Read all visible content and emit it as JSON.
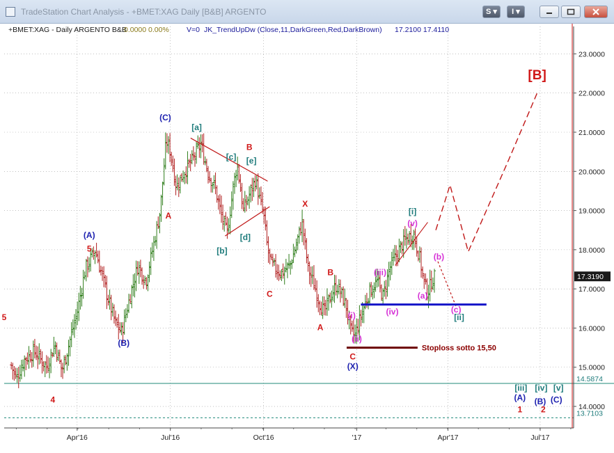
{
  "window": {
    "title": "TradeStation Chart Analysis - +BMET:XAG Daily [B&B] ARGENTO",
    "btn_s": "S",
    "btn_i": "I"
  },
  "header": {
    "symbol": "+BMET:XAG - Daily  ARGENTO  B&B",
    "change": "0.0000  0.00%",
    "volume": "V=0",
    "indicator": "JK_TrendUpDw (Close,11,DarkGreen,Red,DarkBrown)",
    "values": "17.2100  17.4110"
  },
  "chart_data": {
    "type": "bar",
    "title": "",
    "y_ticks": [
      "23.0000",
      "22.0000",
      "21.0000",
      "20.0000",
      "19.0000",
      "18.0000",
      "17.0000",
      "16.0000",
      "15.0000",
      "14.0000"
    ],
    "ylim": [
      13.45,
      23.7
    ],
    "x_tick_labels": [
      "Apr'16",
      "Jul'16",
      "Oct'16",
      "'17",
      "Apr'17",
      "Jul'17"
    ],
    "x_tick_days": [
      90,
      182,
      274,
      366,
      456,
      547
    ],
    "xlim": [
      18,
      580
    ],
    "last_price": "17.3190",
    "last_price_value": 17.319,
    "level_teal": {
      "label": "14.5874",
      "value": 14.5874
    },
    "level_dashed": {
      "label": "13.7103",
      "value": 13.7103
    },
    "ohlc_anchors": [
      [
        25,
        15.05
      ],
      [
        30,
        14.7
      ],
      [
        38,
        15.2
      ],
      [
        48,
        15.4
      ],
      [
        60,
        15.0
      ],
      [
        68,
        15.6
      ],
      [
        75,
        14.9
      ],
      [
        80,
        15.4
      ],
      [
        90,
        16.4
      ],
      [
        98,
        17.5
      ],
      [
        108,
        18.0
      ],
      [
        112,
        17.6
      ],
      [
        120,
        16.8
      ],
      [
        128,
        16.1
      ],
      [
        134,
        15.9
      ],
      [
        142,
        16.8
      ],
      [
        150,
        17.6
      ],
      [
        158,
        17.2
      ],
      [
        166,
        18.2
      ],
      [
        172,
        19.0
      ],
      [
        178,
        20.8
      ],
      [
        182,
        20.5
      ],
      [
        188,
        19.6
      ],
      [
        196,
        20.0
      ],
      [
        204,
        20.3
      ],
      [
        212,
        20.7
      ],
      [
        220,
        19.9
      ],
      [
        226,
        19.6
      ],
      [
        232,
        18.9
      ],
      [
        238,
        18.4
      ],
      [
        244,
        19.6
      ],
      [
        248,
        20.2
      ],
      [
        254,
        19.0
      ],
      [
        260,
        19.4
      ],
      [
        266,
        19.8
      ],
      [
        270,
        19.3
      ],
      [
        274,
        18.9
      ],
      [
        278,
        18.0
      ],
      [
        282,
        17.6
      ],
      [
        292,
        17.4
      ],
      [
        300,
        17.6
      ],
      [
        306,
        18.1
      ],
      [
        312,
        18.7
      ],
      [
        318,
        17.5
      ],
      [
        324,
        17.1
      ],
      [
        330,
        16.6
      ],
      [
        334,
        16.4
      ],
      [
        340,
        16.8
      ],
      [
        346,
        17.1
      ],
      [
        352,
        16.8
      ],
      [
        356,
        16.5
      ],
      [
        360,
        15.9
      ],
      [
        364,
        15.8
      ],
      [
        370,
        16.3
      ],
      [
        378,
        16.9
      ],
      [
        386,
        17.2
      ],
      [
        392,
        16.8
      ],
      [
        398,
        17.5
      ],
      [
        404,
        17.8
      ],
      [
        410,
        18.1
      ],
      [
        416,
        18.3
      ],
      [
        422,
        18.4
      ],
      [
        428,
        17.8
      ],
      [
        432,
        17.2
      ],
      [
        436,
        16.9
      ],
      [
        440,
        17.2
      ],
      [
        444,
        17.35
      ]
    ],
    "labels": [
      {
        "text": "(C)",
        "d": 177,
        "v": 21.3,
        "color": "#1e22b0"
      },
      {
        "text": "[a]",
        "d": 208,
        "v": 21.05,
        "color": "#1f7c7c"
      },
      {
        "text": "B",
        "d": 260,
        "v": 20.55,
        "color": "#d01818"
      },
      {
        "text": "[c]",
        "d": 242,
        "v": 20.3,
        "color": "#1f7c7c"
      },
      {
        "text": "[e]",
        "d": 262,
        "v": 20.2,
        "color": "#1f7c7c"
      },
      {
        "text": "[d]",
        "d": 256,
        "v": 18.25,
        "color": "#1f7c7c"
      },
      {
        "text": "[b]",
        "d": 233,
        "v": 17.9,
        "color": "#1f7c7c"
      },
      {
        "text": "A",
        "d": 180,
        "v": 18.8,
        "color": "#d01818"
      },
      {
        "text": "(A)",
        "d": 102,
        "v": 18.3,
        "color": "#1e22b0"
      },
      {
        "text": "5",
        "d": 102,
        "v": 17.95,
        "color": "#d01818"
      },
      {
        "text": "(B)",
        "d": 136,
        "v": 15.55,
        "color": "#1e22b0"
      },
      {
        "text": "4",
        "d": 66,
        "v": 14.1,
        "color": "#d01818"
      },
      {
        "text": "X",
        "d": 315,
        "v": 19.1,
        "color": "#d01818"
      },
      {
        "text": "C",
        "d": 280,
        "v": 16.8,
        "color": "#d01818"
      },
      {
        "text": "B",
        "d": 340,
        "v": 17.35,
        "color": "#d01818"
      },
      {
        "text": "A",
        "d": 330,
        "v": 15.95,
        "color": "#d01818"
      },
      {
        "text": "C",
        "d": 362,
        "v": 15.2,
        "color": "#d01818"
      },
      {
        "text": "(X)",
        "d": 362,
        "v": 14.95,
        "color": "#1e22b0"
      },
      {
        "text": "[B]",
        "d": 544,
        "v": 22.35,
        "color": "#d01818"
      },
      {
        "text": "[i]",
        "d": 421,
        "v": 18.9,
        "color": "#1f7c7c"
      },
      {
        "text": "(v)",
        "d": 421,
        "v": 18.6,
        "color": "#d633d6"
      },
      {
        "text": "(iii)",
        "d": 389,
        "v": 17.35,
        "color": "#d633d6"
      },
      {
        "text": "(iv)",
        "d": 401,
        "v": 16.35,
        "color": "#d633d6"
      },
      {
        "text": "(i)",
        "d": 361,
        "v": 16.25,
        "color": "#d633d6"
      },
      {
        "text": "(ii)",
        "d": 366,
        "v": 15.65,
        "color": "#d633d6"
      },
      {
        "text": "(b)",
        "d": 447,
        "v": 17.75,
        "color": "#d633d6"
      },
      {
        "text": "(a)",
        "d": 431,
        "v": 16.75,
        "color": "#d633d6"
      },
      {
        "text": "(c)",
        "d": 464,
        "v": 16.4,
        "color": "#d633d6"
      },
      {
        "text": "[ii]",
        "d": 467,
        "v": 16.2,
        "color": "#1f7c7c"
      },
      {
        "text": "[iii]",
        "d": 528,
        "v": 14.4,
        "color": "#1f7c7c"
      },
      {
        "text": "[iv]",
        "d": 548,
        "v": 14.4,
        "color": "#1f7c7c"
      },
      {
        "text": "[v]",
        "d": 565,
        "v": 14.4,
        "color": "#1f7c7c"
      },
      {
        "text": "(A)",
        "d": 527,
        "v": 14.15,
        "color": "#1e22b0"
      },
      {
        "text": "(B)",
        "d": 547,
        "v": 14.05,
        "color": "#1e22b0"
      },
      {
        "text": "(C)",
        "d": 563,
        "v": 14.1,
        "color": "#1e22b0"
      },
      {
        "text": "1",
        "d": 527,
        "v": 13.85,
        "color": "#d01818"
      },
      {
        "text": "2",
        "d": 550,
        "v": 13.85,
        "color": "#d01818"
      },
      {
        "text": "5",
        "d": 18,
        "v": 16.2,
        "color": "#d01818"
      }
    ],
    "stoploss": {
      "text": "Stoploss  sotto 15,50",
      "value": 15.5,
      "d_start": 356,
      "d_end": 426
    },
    "support_line": {
      "value": 16.6,
      "d_start": 370,
      "d_end": 494
    },
    "projection": [
      [
        444,
        18.5
      ],
      [
        458,
        19.65
      ],
      [
        476,
        17.95
      ],
      [
        516,
        20.3
      ],
      [
        544,
        22.0
      ]
    ],
    "corrective_path": [
      [
        446,
        17.7
      ],
      [
        464,
        16.55
      ]
    ],
    "triangle_upper": [
      [
        202,
        20.85
      ],
      [
        278,
        19.75
      ]
    ],
    "triangle_lower": [
      [
        236,
        18.35
      ],
      [
        280,
        19.1
      ]
    ],
    "wave_channel": [
      [
        404,
        17.6
      ],
      [
        436,
        18.7
      ]
    ]
  }
}
